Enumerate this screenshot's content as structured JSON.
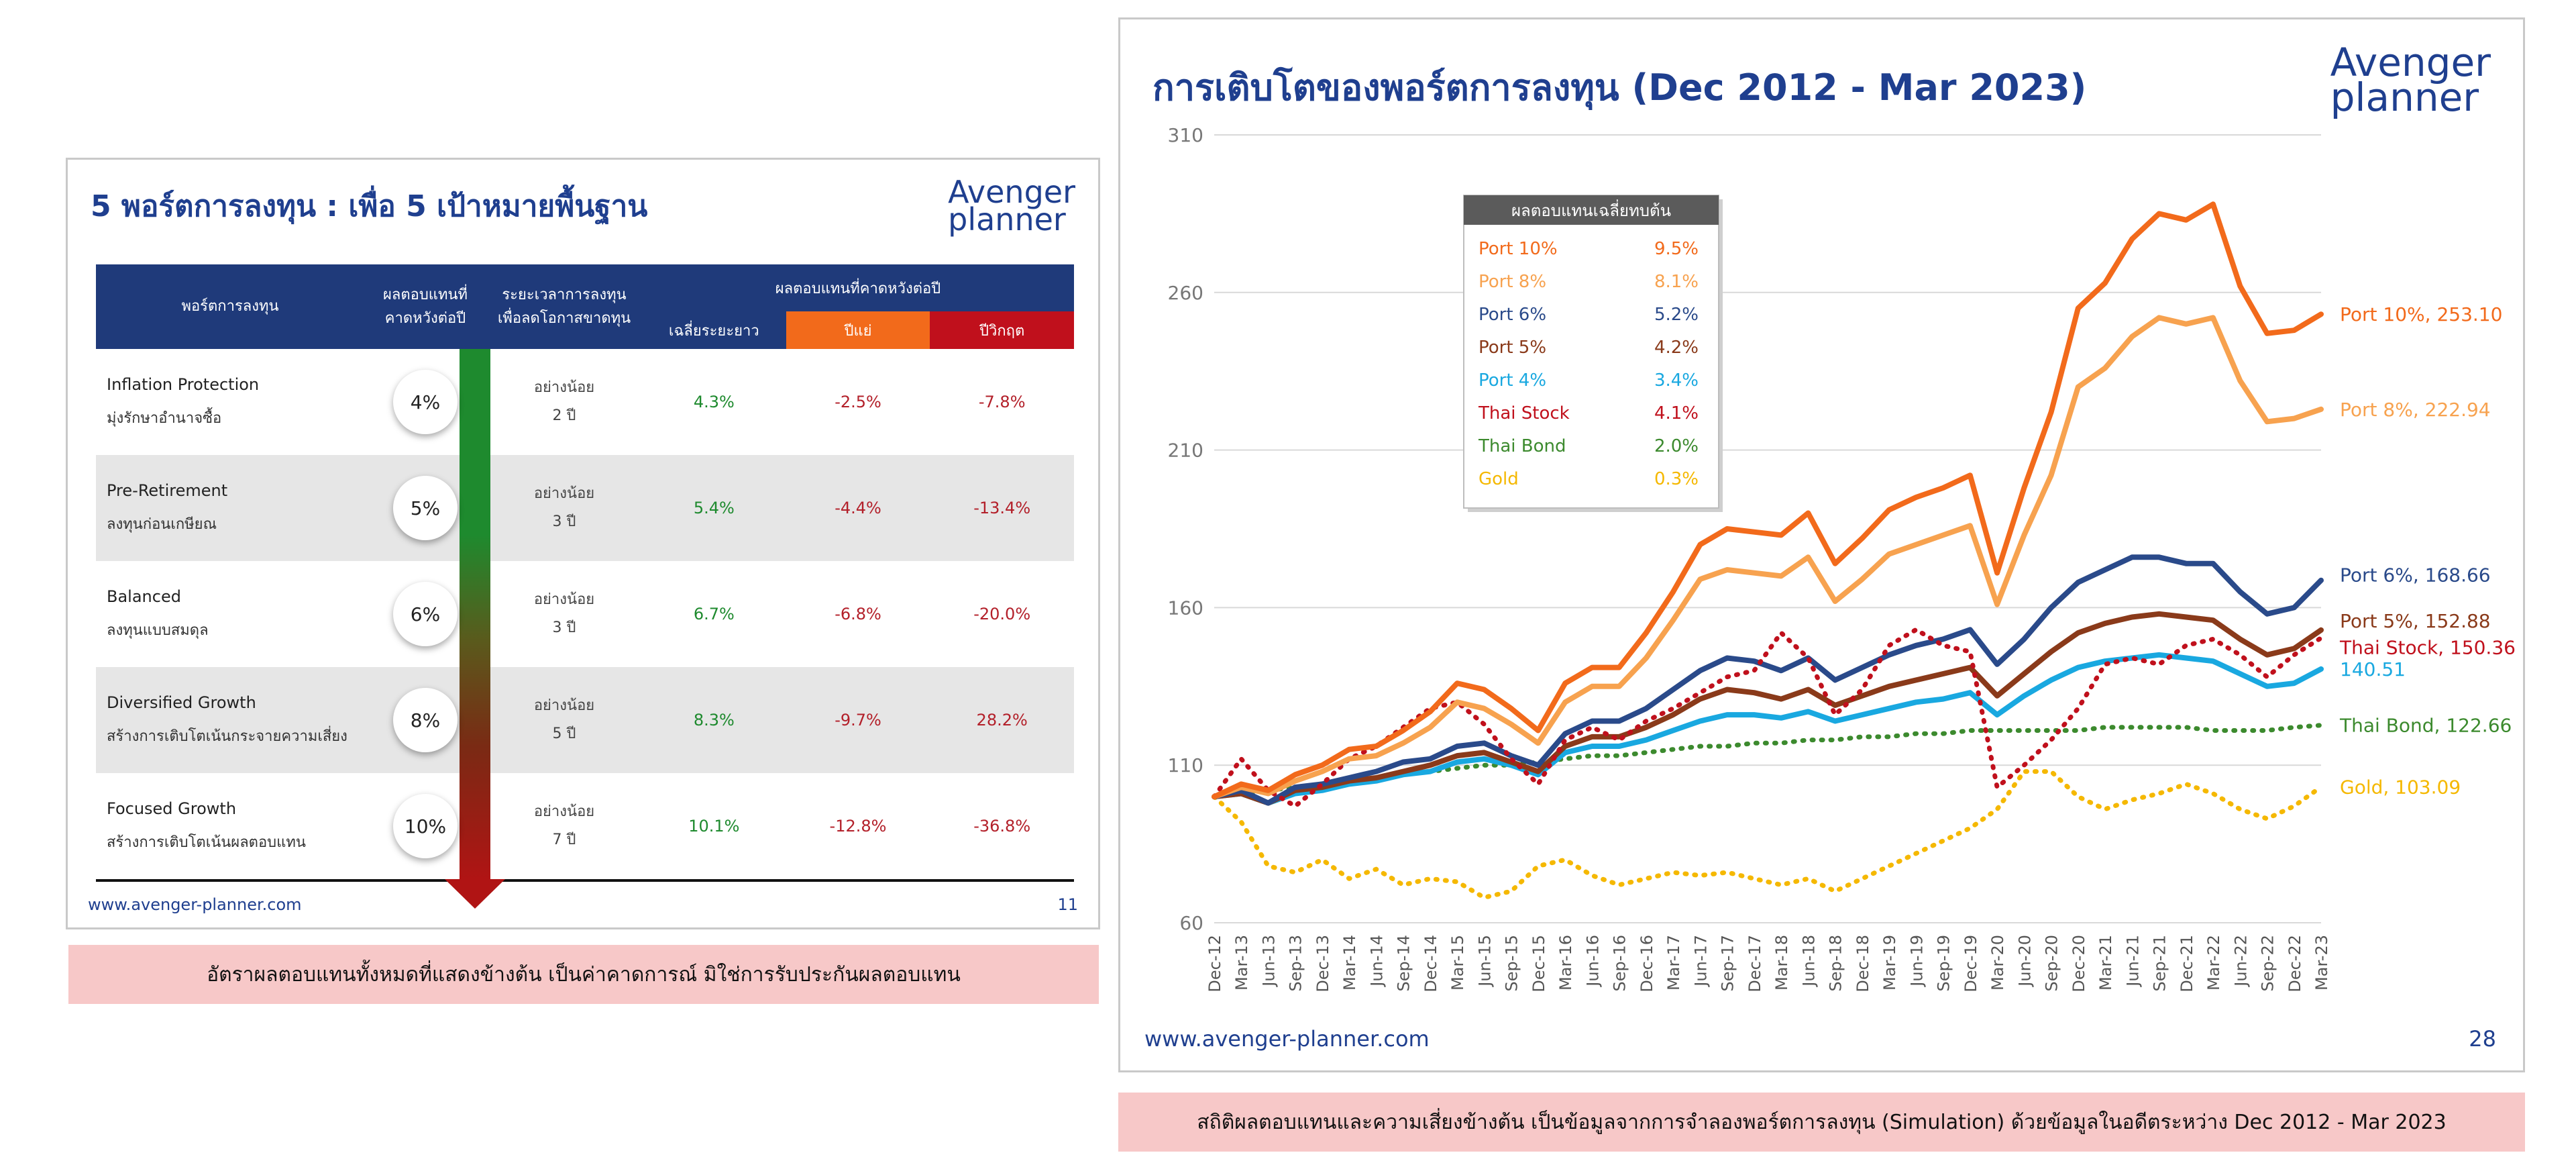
{
  "left_slide": {
    "title": "5 พอร์ตการลงทุน : เพื่อ 5 เป้าหมายพื้นฐาน",
    "logo_line1": "Avenger",
    "logo_line2": "planner",
    "headers": {
      "portfolio": "พอร์ตการลงทุน",
      "expected_return_1": "ผลตอบแทนที่",
      "expected_return_2": "คาดหวังต่อปี",
      "term_1": "ระยะเวลาการลงทุน",
      "term_2": "เพื่อลดโอกาสขาดทุน",
      "group": "ผลตอบแทนที่คาดหวังต่อปี",
      "avg": "เฉลี่ยระยะยาว",
      "bad": "ปีแย่",
      "crisis": "ปีวิกฤต"
    },
    "header_colors": {
      "avg": "#1f3a7a",
      "bad": "#f26a1b",
      "crisis": "#c0101c"
    },
    "rows": [
      {
        "name": "Inflation Protection",
        "sub": "มุ่งรักษาอำนาจซื้อ",
        "ret": "4%",
        "term1": "อย่างน้อย",
        "term2": "2 ปี",
        "avg": "4.3%",
        "bad": "-2.5%",
        "crisis": "-7.8%"
      },
      {
        "name": "Pre-Retirement",
        "sub": "ลงทุนก่อนเกษียณ",
        "ret": "5%",
        "term1": "อย่างน้อย",
        "term2": "3 ปี",
        "avg": "5.4%",
        "bad": "-4.4%",
        "crisis": "-13.4%"
      },
      {
        "name": "Balanced",
        "sub": "ลงทุนแบบสมดุล",
        "ret": "6%",
        "term1": "อย่างน้อย",
        "term2": "3 ปี",
        "avg": "6.7%",
        "bad": "-6.8%",
        "crisis": "-20.0%"
      },
      {
        "name": "Diversified Growth",
        "sub": "สร้างการเติบโตเน้นกระจายความเสี่ยง",
        "ret": "8%",
        "term1": "อย่างน้อย",
        "term2": "5 ปี",
        "avg": "8.3%",
        "bad": "-9.7%",
        "crisis": "28.2%"
      },
      {
        "name": "Focused Growth",
        "sub": "สร้างการเติบโตเน้นผลตอบแทน",
        "ret": "10%",
        "term1": "อย่างน้อย",
        "term2": "7 ปี",
        "avg": "10.1%",
        "bad": "-12.8%",
        "crisis": "-36.8%"
      }
    ],
    "url": "www.avenger-planner.com",
    "page": "11",
    "note": "อัตราผลตอบแทนทั้งหมดที่แสดงข้างต้น เป็นค่าคาดการณ์  มิใช่การรับประกันผลตอบแทน"
  },
  "right_slide": {
    "title": "การเติบโตของพอร์ตการลงทุน (Dec 2012 - Mar 2023)",
    "logo_line1": "Avenger",
    "logo_line2": "planner",
    "url": "www.avenger-planner.com",
    "page": "28",
    "note": "สถิติผลตอบแทนและความเสี่ยงข้างต้น เป็นข้อมูลจากการจำลองพอร์ตการลงทุน (Simulation) ด้วยข้อมูลในอดีตระหว่าง Dec 2012 - Mar 2023"
  },
  "chart_data": {
    "type": "line",
    "title": "การเติบโตของพอร์ตการลงทุน (Dec 2012 - Mar 2023)",
    "xlabel": "",
    "ylabel": "",
    "ylim": [
      60,
      310
    ],
    "yticks": [
      60,
      110,
      160,
      210,
      260,
      310
    ],
    "grid": true,
    "x_start": "Dec-12",
    "x_end": "Mar-23",
    "x_ticks": [
      "Dec-12",
      "Mar-13",
      "Jun-13",
      "Sep-13",
      "Dec-13",
      "Mar-14",
      "Jun-14",
      "Sep-14",
      "Dec-14",
      "Mar-15",
      "Jun-15",
      "Sep-15",
      "Dec-15",
      "Mar-16",
      "Jun-16",
      "Sep-16",
      "Dec-16",
      "Mar-17",
      "Jun-17",
      "Sep-17",
      "Dec-17",
      "Mar-18",
      "Jun-18",
      "Sep-18",
      "Dec-18",
      "Mar-19",
      "Jun-19",
      "Sep-19",
      "Dec-19",
      "Mar-20",
      "Jun-20",
      "Sep-20",
      "Dec-20",
      "Mar-21",
      "Jun-21",
      "Sep-21",
      "Dec-21",
      "Mar-22",
      "Jun-22",
      "Sep-22",
      "Dec-22",
      "Mar-23"
    ],
    "legend_title": "ผลตอบแทนเฉลี่ยทบต้น",
    "legend_placement": "top-left",
    "series": [
      {
        "name": "Port 10%",
        "rate": "9.5%",
        "color": "#f26a1b",
        "style": "solid",
        "end_label": "Port 10%, 253.10",
        "values": [
          100,
          104,
          102,
          107,
          110,
          115,
          116,
          121,
          127,
          136,
          134,
          128,
          121,
          136,
          141,
          141,
          152,
          165,
          180,
          185,
          184,
          183,
          190,
          174,
          182,
          191,
          195,
          198,
          202,
          171,
          198,
          222,
          255,
          263,
          277,
          285,
          283,
          288,
          262,
          247,
          248,
          253.1
        ]
      },
      {
        "name": "Port 8%",
        "rate": "8.1%",
        "color": "#f7a24f",
        "style": "solid",
        "end_label": "Port 8%, 222.94",
        "values": [
          100,
          103,
          101,
          105,
          108,
          112,
          113,
          117,
          122,
          130,
          128,
          123,
          117,
          130,
          135,
          135,
          144,
          156,
          169,
          172,
          171,
          170,
          176,
          162,
          169,
          177,
          180,
          183,
          186,
          161,
          183,
          202,
          230,
          236,
          246,
          252,
          250,
          252,
          232,
          219,
          220,
          222.94
        ]
      },
      {
        "name": "Port 6%",
        "rate": "5.2%",
        "color": "#2a4a8a",
        "style": "solid",
        "end_label": "Port 6%, 168.66",
        "values": [
          100,
          102,
          98,
          103,
          104,
          106,
          108,
          111,
          112,
          116,
          117,
          113,
          110,
          120,
          124,
          124,
          128,
          134,
          140,
          144,
          143,
          140,
          144,
          137,
          141,
          145,
          148,
          150,
          153,
          142,
          150,
          160,
          168,
          172,
          176,
          176,
          174,
          174,
          165,
          158,
          160,
          168.66
        ]
      },
      {
        "name": "Port 5%",
        "rate": "4.2%",
        "color": "#8a3a1a",
        "style": "solid",
        "end_label": "Port 5%, 152.88",
        "values": [
          100,
          101,
          98,
          102,
          103,
          105,
          106,
          108,
          110,
          113,
          114,
          111,
          108,
          116,
          119,
          119,
          122,
          126,
          131,
          134,
          133,
          131,
          134,
          129,
          132,
          135,
          137,
          139,
          141,
          132,
          139,
          146,
          152,
          155,
          157,
          158,
          157,
          156,
          150,
          145,
          147,
          152.88
        ]
      },
      {
        "name": "Port 4%",
        "rate": "3.4%",
        "color": "#19a8e0",
        "style": "solid",
        "end_label": "140.51",
        "values": [
          100,
          101,
          98,
          101,
          102,
          104,
          105,
          107,
          108,
          111,
          112,
          110,
          107,
          114,
          116,
          116,
          118,
          121,
          124,
          126,
          126,
          125,
          127,
          124,
          126,
          128,
          130,
          131,
          133,
          126,
          132,
          137,
          141,
          143,
          144,
          145,
          144,
          143,
          139,
          135,
          136,
          140.51
        ]
      },
      {
        "name": "Thai Stock",
        "rate": "4.1%",
        "color": "#c0101c",
        "style": "dotted",
        "end_label": "Thai Stock, 150.36",
        "values": [
          100,
          112,
          102,
          97,
          104,
          112,
          116,
          122,
          128,
          130,
          123,
          112,
          104,
          118,
          122,
          118,
          124,
          128,
          133,
          138,
          140,
          152,
          144,
          126,
          134,
          148,
          153,
          148,
          146,
          103,
          110,
          118,
          128,
          142,
          144,
          142,
          148,
          150,
          145,
          138,
          145,
          150.36
        ]
      },
      {
        "name": "Thai Bond",
        "rate": "2.0%",
        "color": "#3c8a2e",
        "style": "dotted",
        "end_label": "Thai Bond, 122.66",
        "values": [
          100,
          101,
          102,
          103,
          104,
          105,
          106,
          107,
          108,
          109,
          110,
          110,
          111,
          112,
          113,
          113,
          114,
          115,
          116,
          116,
          117,
          117,
          118,
          118,
          119,
          119,
          120,
          120,
          121,
          121,
          121,
          121,
          121,
          122,
          122,
          122,
          122,
          121,
          121,
          121,
          122,
          122.66
        ]
      },
      {
        "name": "Gold",
        "rate": "0.3%",
        "color": "#f5b800",
        "style": "dotted",
        "end_label": "Gold, 103.09",
        "values": [
          100,
          92,
          78,
          76,
          80,
          74,
          77,
          72,
          74,
          73,
          68,
          70,
          78,
          80,
          75,
          72,
          74,
          76,
          75,
          76,
          74,
          72,
          74,
          70,
          74,
          78,
          82,
          86,
          90,
          96,
          108,
          108,
          100,
          96,
          99,
          101,
          104,
          101,
          96,
          93,
          97,
          103.09
        ]
      }
    ]
  }
}
